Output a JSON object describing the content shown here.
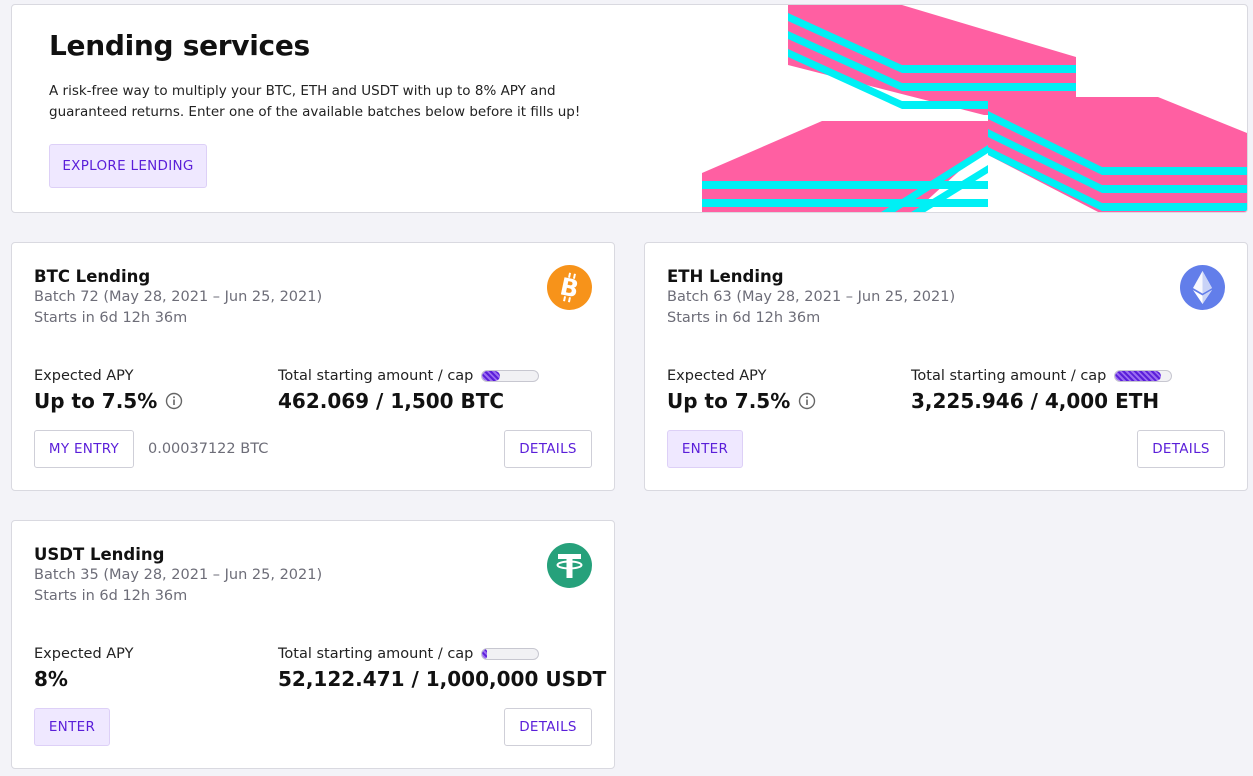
{
  "hero": {
    "title": "Lending services",
    "description": "A risk-free way to multiply your BTC, ETH and USDT with up to 8% APY and guaranteed returns. Enter one of the available batches below before it fills up!",
    "button_label": "EXPLORE LENDING"
  },
  "colors": {
    "accent": "#5a1ed9",
    "accent_tint": "#efe8ff",
    "art_pink": "#ff5fa2",
    "art_cyan": "#00f0f5",
    "btc": "#f7931a",
    "eth": "#627eea",
    "usdt": "#26a17b"
  },
  "cards": {
    "btc": {
      "title": "BTC Lending",
      "batch": "Batch 72 (May 28, 2021 – Jun 25, 2021)",
      "starts": "Starts in 6d 12h 36m",
      "icon": "bitcoin-icon",
      "apy_label": "Expected APY",
      "apy_value": "Up to 7.5%",
      "amount_label": "Total starting amount / cap",
      "amount_value": "462.069 / 1,500 BTC",
      "progress": 0.31,
      "primary_label": "MY ENTRY",
      "entry_amount": "0.00037122 BTC",
      "details_label": "DETAILS"
    },
    "eth": {
      "title": "ETH Lending",
      "batch": "Batch 63 (May 28, 2021 – Jun 25, 2021)",
      "starts": "Starts in 6d 12h 36m",
      "icon": "ethereum-icon",
      "apy_label": "Expected APY",
      "apy_value": "Up to 7.5%",
      "amount_label": "Total starting amount / cap",
      "amount_value": "3,225.946 / 4,000 ETH",
      "progress": 0.81,
      "primary_label": "ENTER",
      "details_label": "DETAILS"
    },
    "usdt": {
      "title": "USDT Lending",
      "batch": "Batch 35 (May 28, 2021 – Jun 25, 2021)",
      "starts": "Starts in 6d 12h 36m",
      "icon": "tether-icon",
      "apy_label": "Expected APY",
      "apy_value": "8%",
      "amount_label": "Total starting amount / cap",
      "amount_value": "52,122.471 / 1,000,000 USDT",
      "progress": 0.05,
      "primary_label": "ENTER",
      "details_label": "DETAILS"
    }
  }
}
